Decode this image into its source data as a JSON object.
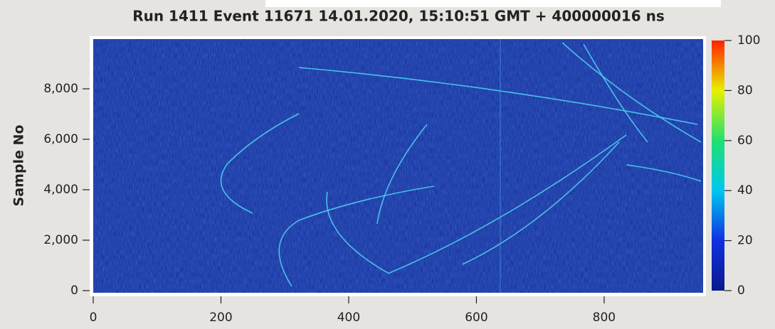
{
  "chart_data": {
    "type": "heatmap",
    "title": "Run 1411 Event 11671 14.01.2020, 15:10:51 GMT + 400000016 ns",
    "ylabel": "Sample No",
    "xlim": [
      0,
      955
    ],
    "xticks": [
      0,
      200,
      400,
      600,
      800
    ],
    "ylim": [
      0,
      10000
    ],
    "yticks": [
      0,
      {
        "value": 2000,
        "label": "2,000"
      },
      {
        "value": 4000,
        "label": "4,000"
      },
      {
        "value": 6000,
        "label": "6,000"
      },
      {
        "value": 8000,
        "label": "8,000"
      }
    ],
    "colorbar": {
      "lim": [
        0,
        100
      ],
      "ticks": [
        0,
        20,
        40,
        60,
        80,
        100
      ],
      "colors": [
        "#0a1a8c",
        "#1030e0",
        "#00c8f0",
        "#20e070",
        "#e8f000",
        "#ff2000"
      ]
    }
  }
}
